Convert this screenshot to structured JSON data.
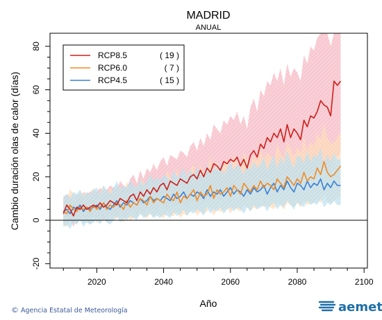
{
  "chart_data": {
    "type": "line",
    "title": "MADRID",
    "subtitle": "ANUAL",
    "xlabel": "Año",
    "ylabel": "Cambio duración olas de calor (días)",
    "xlim": [
      2006,
      2101
    ],
    "ylim": [
      -22,
      86
    ],
    "xticks": [
      2020,
      2040,
      2060,
      2080,
      2100
    ],
    "yticks": [
      -20,
      0,
      20,
      40,
      60,
      80
    ],
    "grid": false,
    "zero_line": 0,
    "legend_position": "top-left",
    "x_start": 2010,
    "series": [
      {
        "name": "RCP8.5",
        "count": "( 19 )",
        "color": "#cc1f1a",
        "band_color": "#f4a5b2",
        "values": [
          3,
          7,
          5,
          2,
          6,
          5,
          7,
          5,
          6,
          7,
          6,
          8,
          6,
          7,
          9,
          8,
          7,
          10,
          9,
          8,
          11,
          12,
          9,
          13,
          11,
          14,
          12,
          15,
          13,
          16,
          17,
          14,
          18,
          17,
          16,
          19,
          18,
          17,
          20,
          21,
          19,
          23,
          20,
          24,
          22,
          26,
          25,
          23,
          27,
          26,
          28,
          27,
          29,
          25,
          28,
          24,
          30,
          32,
          29,
          35,
          33,
          38,
          36,
          40,
          38,
          42,
          36,
          44,
          38,
          42,
          40,
          37,
          46,
          43,
          48,
          47,
          50,
          55,
          53,
          52,
          48,
          64,
          62,
          64
        ],
        "upper": [
          10,
          12,
          11,
          9,
          12,
          11,
          13,
          12,
          13,
          14,
          13,
          15,
          13,
          14,
          16,
          15,
          14,
          18,
          16,
          15,
          19,
          21,
          17,
          23,
          19,
          24,
          22,
          26,
          23,
          27,
          29,
          25,
          30,
          29,
          28,
          32,
          31,
          29,
          34,
          36,
          32,
          38,
          34,
          40,
          37,
          44,
          42,
          40,
          46,
          44,
          48,
          46,
          50,
          44,
          48,
          42,
          52,
          56,
          50,
          60,
          57,
          64,
          62,
          68,
          64,
          70,
          62,
          72,
          66,
          70,
          68,
          64,
          76,
          72,
          80,
          78,
          84,
          86,
          86,
          86,
          80,
          86,
          86,
          86
        ],
        "lower": [
          -2,
          2,
          0,
          -3,
          1,
          0,
          2,
          0,
          1,
          2,
          1,
          2,
          0,
          1,
          3,
          2,
          1,
          4,
          2,
          1,
          4,
          5,
          2,
          5,
          3,
          6,
          4,
          6,
          4,
          7,
          7,
          5,
          8,
          7,
          6,
          8,
          7,
          6,
          9,
          9,
          7,
          10,
          8,
          10,
          9,
          11,
          10,
          9,
          12,
          11,
          12,
          11,
          13,
          10,
          12,
          9,
          13,
          14,
          12,
          15,
          14,
          17,
          15,
          18,
          16,
          19,
          15,
          20,
          16,
          19,
          18,
          15,
          21,
          19,
          22,
          21,
          23,
          26,
          24,
          23,
          20,
          31,
          29,
          31
        ]
      },
      {
        "name": "RCP6.0",
        "count": "( 7 )",
        "color": "#f08a24",
        "band_color": "#fdd2a8",
        "values": [
          4,
          3,
          7,
          5,
          4,
          6,
          5,
          6,
          4,
          7,
          5,
          6,
          8,
          5,
          7,
          6,
          8,
          7,
          5,
          9,
          6,
          8,
          7,
          10,
          9,
          7,
          11,
          8,
          10,
          9,
          8,
          12,
          10,
          9,
          13,
          8,
          11,
          10,
          12,
          14,
          9,
          13,
          11,
          12,
          16,
          10,
          14,
          12,
          13,
          15,
          11,
          16,
          14,
          12,
          17,
          15,
          13,
          16,
          14,
          18,
          15,
          17,
          16,
          14,
          19,
          17,
          15,
          20,
          18,
          16,
          19,
          17,
          22,
          18,
          20,
          19,
          24,
          21,
          27,
          22,
          20,
          21,
          23,
          25
        ],
        "upper": [
          11,
          10,
          14,
          12,
          11,
          13,
          12,
          13,
          11,
          15,
          12,
          13,
          16,
          12,
          15,
          13,
          16,
          15,
          12,
          18,
          13,
          16,
          15,
          19,
          18,
          15,
          21,
          16,
          20,
          18,
          16,
          23,
          20,
          18,
          24,
          16,
          22,
          20,
          23,
          26,
          18,
          25,
          22,
          23,
          29,
          20,
          27,
          23,
          25,
          28,
          21,
          30,
          27,
          23,
          31,
          28,
          25,
          30,
          27,
          33,
          28,
          31,
          30,
          27,
          35,
          31,
          28,
          36,
          33,
          29,
          34,
          31,
          38,
          32,
          36,
          34,
          40,
          37,
          44,
          38,
          35,
          36,
          38,
          40
        ],
        "lower": [
          -2,
          -3,
          1,
          -1,
          -2,
          0,
          -1,
          0,
          -2,
          1,
          -1,
          0,
          1,
          -1,
          1,
          0,
          1,
          1,
          -1,
          2,
          0,
          1,
          1,
          3,
          2,
          1,
          3,
          1,
          3,
          2,
          1,
          4,
          2,
          2,
          4,
          1,
          3,
          2,
          4,
          5,
          2,
          4,
          3,
          4,
          6,
          2,
          5,
          4,
          4,
          6,
          3,
          6,
          5,
          4,
          7,
          6,
          4,
          6,
          5,
          7,
          6,
          7,
          6,
          5,
          8,
          7,
          5,
          8,
          7,
          6,
          8,
          6,
          9,
          7,
          8,
          8,
          10,
          8,
          12,
          9,
          8,
          9,
          10,
          11
        ]
      },
      {
        "name": "RCP4.5",
        "count": "( 15 )",
        "color": "#3a7fd5",
        "band_color": "#a9d6e8",
        "values": [
          4,
          5,
          3,
          6,
          5,
          7,
          4,
          6,
          5,
          6,
          7,
          5,
          8,
          6,
          5,
          7,
          9,
          6,
          8,
          7,
          9,
          8,
          7,
          10,
          8,
          9,
          11,
          9,
          10,
          9,
          11,
          10,
          9,
          12,
          10,
          11,
          13,
          10,
          12,
          11,
          13,
          12,
          10,
          14,
          11,
          13,
          12,
          14,
          11,
          13,
          15,
          12,
          14,
          13,
          11,
          14,
          12,
          15,
          13,
          14,
          16,
          12,
          15,
          17,
          13,
          16,
          14,
          18,
          15,
          13,
          17,
          16,
          14,
          18,
          15,
          17,
          16,
          19,
          14,
          17,
          15,
          18,
          16,
          16
        ],
        "upper": [
          11,
          12,
          10,
          13,
          12,
          14,
          11,
          13,
          12,
          14,
          15,
          12,
          16,
          14,
          12,
          15,
          18,
          14,
          16,
          15,
          18,
          16,
          15,
          19,
          16,
          18,
          21,
          18,
          20,
          18,
          21,
          20,
          18,
          23,
          20,
          21,
          24,
          20,
          23,
          21,
          24,
          23,
          20,
          26,
          21,
          24,
          23,
          26,
          21,
          24,
          27,
          23,
          26,
          24,
          21,
          26,
          23,
          27,
          24,
          26,
          29,
          23,
          27,
          30,
          24,
          29,
          26,
          32,
          27,
          24,
          30,
          29,
          26,
          32,
          27,
          30,
          29,
          33,
          26,
          30,
          27,
          31,
          28,
          28
        ],
        "lower": [
          -3,
          -2,
          -4,
          -1,
          -2,
          0,
          -3,
          -1,
          -2,
          -1,
          0,
          -2,
          1,
          -1,
          -2,
          0,
          2,
          -1,
          1,
          0,
          2,
          1,
          0,
          3,
          1,
          2,
          3,
          1,
          2,
          1,
          3,
          2,
          1,
          4,
          2,
          3,
          5,
          2,
          4,
          3,
          5,
          4,
          2,
          6,
          3,
          5,
          4,
          6,
          3,
          5,
          6,
          4,
          6,
          5,
          3,
          6,
          4,
          7,
          5,
          6,
          7,
          4,
          7,
          8,
          5,
          7,
          6,
          9,
          7,
          5,
          8,
          7,
          6,
          9,
          7,
          8,
          7,
          10,
          6,
          8,
          7,
          9,
          7,
          7
        ]
      }
    ]
  },
  "footer": {
    "copyright_symbol": "©",
    "agency": "Agencia Estatal de Meteorología"
  },
  "brand": {
    "logo_icon": "aemet-logo-icon",
    "name": "aemet",
    "color": "#1d6fa8"
  }
}
